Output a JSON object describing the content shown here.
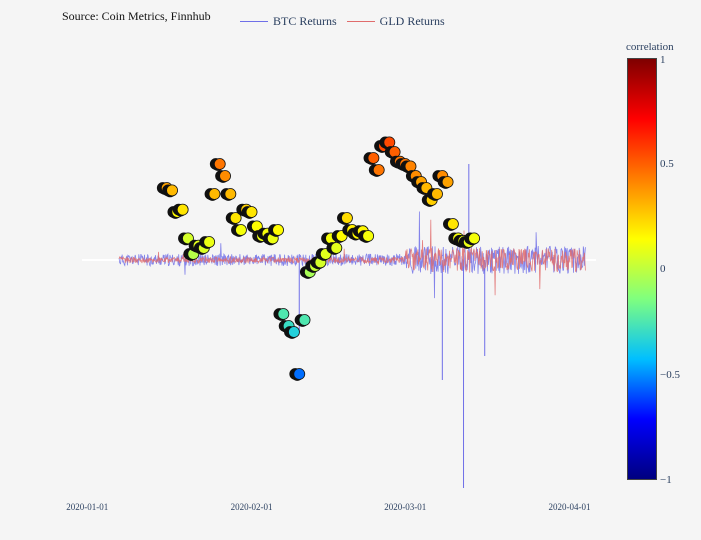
{
  "source_text": "Source: Coin Metrics, Finnhub",
  "legend": {
    "btc_label": "BTC Returns",
    "gld_label": "GLD Returns",
    "btc_color": "#6f6fe8",
    "gld_color": "#e06c6c"
  },
  "colorbar": {
    "title": "correlation",
    "ticks": [
      "1",
      "0.5",
      "0",
      "−0.5",
      "−1"
    ],
    "colorscale": [
      "#00007f",
      "#0000ff",
      "#00bfff",
      "#7fff7f",
      "#ffff00",
      "#ff7f00",
      "#ff0000",
      "#7f0000"
    ]
  },
  "chart_data": {
    "type": "scatter",
    "x_ticks": [
      "2020-01-01",
      "2020-02-01",
      "2020-03-01",
      "2020-04-01"
    ],
    "x_range": [
      "2019-12-31",
      "2020-04-06"
    ],
    "series": [
      {
        "name": "BTC Returns",
        "kind": "line",
        "note": "hourly returns, spikes up to ~+0.06 and ~-0.19 in March"
      },
      {
        "name": "GLD Returns",
        "kind": "line",
        "note": "hourly returns, larger amplitude in March"
      },
      {
        "name": "correlation",
        "kind": "markers"
      }
    ],
    "correlation_points": [
      {
        "date": "2020-01-16",
        "value": 0.6,
        "corr": 0.35
      },
      {
        "date": "2020-01-17",
        "value": 0.58,
        "corr": 0.3
      },
      {
        "date": "2020-01-18",
        "value": 0.4,
        "corr": 0.15
      },
      {
        "date": "2020-01-19",
        "value": 0.42,
        "corr": 0.2
      },
      {
        "date": "2020-01-20",
        "value": 0.18,
        "corr": 0.05
      },
      {
        "date": "2020-01-21",
        "value": 0.05,
        "corr": -0.02
      },
      {
        "date": "2020-01-22",
        "value": 0.12,
        "corr": 0.08
      },
      {
        "date": "2020-01-23",
        "value": 0.1,
        "corr": 0.06
      },
      {
        "date": "2020-01-24",
        "value": 0.15,
        "corr": 0.1
      },
      {
        "date": "2020-01-25",
        "value": 0.55,
        "corr": 0.3
      },
      {
        "date": "2020-01-26",
        "value": 0.8,
        "corr": 0.45
      },
      {
        "date": "2020-01-27",
        "value": 0.7,
        "corr": 0.4
      },
      {
        "date": "2020-01-28",
        "value": 0.55,
        "corr": 0.3
      },
      {
        "date": "2020-01-29",
        "value": 0.35,
        "corr": 0.2
      },
      {
        "date": "2020-01-30",
        "value": 0.25,
        "corr": 0.12
      },
      {
        "date": "2020-01-31",
        "value": 0.42,
        "corr": 0.25
      },
      {
        "date": "2020-02-01",
        "value": 0.4,
        "corr": 0.2
      },
      {
        "date": "2020-02-02",
        "value": 0.28,
        "corr": 0.15
      },
      {
        "date": "2020-02-03",
        "value": 0.2,
        "corr": 0.1
      },
      {
        "date": "2020-02-04",
        "value": 0.22,
        "corr": 0.12
      },
      {
        "date": "2020-02-05",
        "value": 0.18,
        "corr": 0.1
      },
      {
        "date": "2020-02-06",
        "value": 0.25,
        "corr": 0.15
      },
      {
        "date": "2020-02-07",
        "value": -0.45,
        "corr": -0.25
      },
      {
        "date": "2020-02-08",
        "value": -0.55,
        "corr": -0.3
      },
      {
        "date": "2020-02-09",
        "value": -0.6,
        "corr": -0.35
      },
      {
        "date": "2020-02-10",
        "value": -0.95,
        "corr": -0.55
      },
      {
        "date": "2020-02-11",
        "value": -0.5,
        "corr": -0.25
      },
      {
        "date": "2020-02-12",
        "value": -0.1,
        "corr": -0.05
      },
      {
        "date": "2020-02-13",
        "value": -0.05,
        "corr": 0.02
      },
      {
        "date": "2020-02-14",
        "value": -0.02,
        "corr": 0.05
      },
      {
        "date": "2020-02-15",
        "value": 0.05,
        "corr": 0.08
      },
      {
        "date": "2020-02-16",
        "value": 0.18,
        "corr": 0.12
      },
      {
        "date": "2020-02-17",
        "value": 0.1,
        "corr": 0.08
      },
      {
        "date": "2020-02-18",
        "value": 0.2,
        "corr": 0.15
      },
      {
        "date": "2020-02-19",
        "value": 0.35,
        "corr": 0.22
      },
      {
        "date": "2020-02-20",
        "value": 0.25,
        "corr": 0.18
      },
      {
        "date": "2020-02-21",
        "value": 0.22,
        "corr": 0.15
      },
      {
        "date": "2020-02-22",
        "value": 0.24,
        "corr": 0.16
      },
      {
        "date": "2020-02-23",
        "value": 0.2,
        "corr": 0.12
      },
      {
        "date": "2020-02-24",
        "value": 0.85,
        "corr": 0.5
      },
      {
        "date": "2020-02-25",
        "value": 0.75,
        "corr": 0.45
      },
      {
        "date": "2020-02-26",
        "value": 0.95,
        "corr": 0.55
      },
      {
        "date": "2020-02-27",
        "value": 0.98,
        "corr": 0.55
      },
      {
        "date": "2020-02-28",
        "value": 0.9,
        "corr": 0.5
      },
      {
        "date": "2020-02-29",
        "value": 0.82,
        "corr": 0.45
      },
      {
        "date": "2020-03-01",
        "value": 0.8,
        "corr": 0.45
      },
      {
        "date": "2020-03-02",
        "value": 0.78,
        "corr": 0.42
      },
      {
        "date": "2020-03-03",
        "value": 0.7,
        "corr": 0.4
      },
      {
        "date": "2020-03-04",
        "value": 0.65,
        "corr": 0.35
      },
      {
        "date": "2020-03-05",
        "value": 0.6,
        "corr": 0.3
      },
      {
        "date": "2020-03-06",
        "value": 0.5,
        "corr": 0.25
      },
      {
        "date": "2020-03-07",
        "value": 0.55,
        "corr": 0.3
      },
      {
        "date": "2020-03-08",
        "value": 0.7,
        "corr": 0.4
      },
      {
        "date": "2020-03-09",
        "value": 0.65,
        "corr": 0.35
      },
      {
        "date": "2020-03-10",
        "value": 0.3,
        "corr": 0.2
      },
      {
        "date": "2020-03-11",
        "value": 0.18,
        "corr": 0.12
      },
      {
        "date": "2020-03-12",
        "value": 0.16,
        "corr": 0.1
      },
      {
        "date": "2020-03-13",
        "value": 0.15,
        "corr": 0.1
      },
      {
        "date": "2020-03-14",
        "value": 0.18,
        "corr": 0.12
      }
    ]
  }
}
